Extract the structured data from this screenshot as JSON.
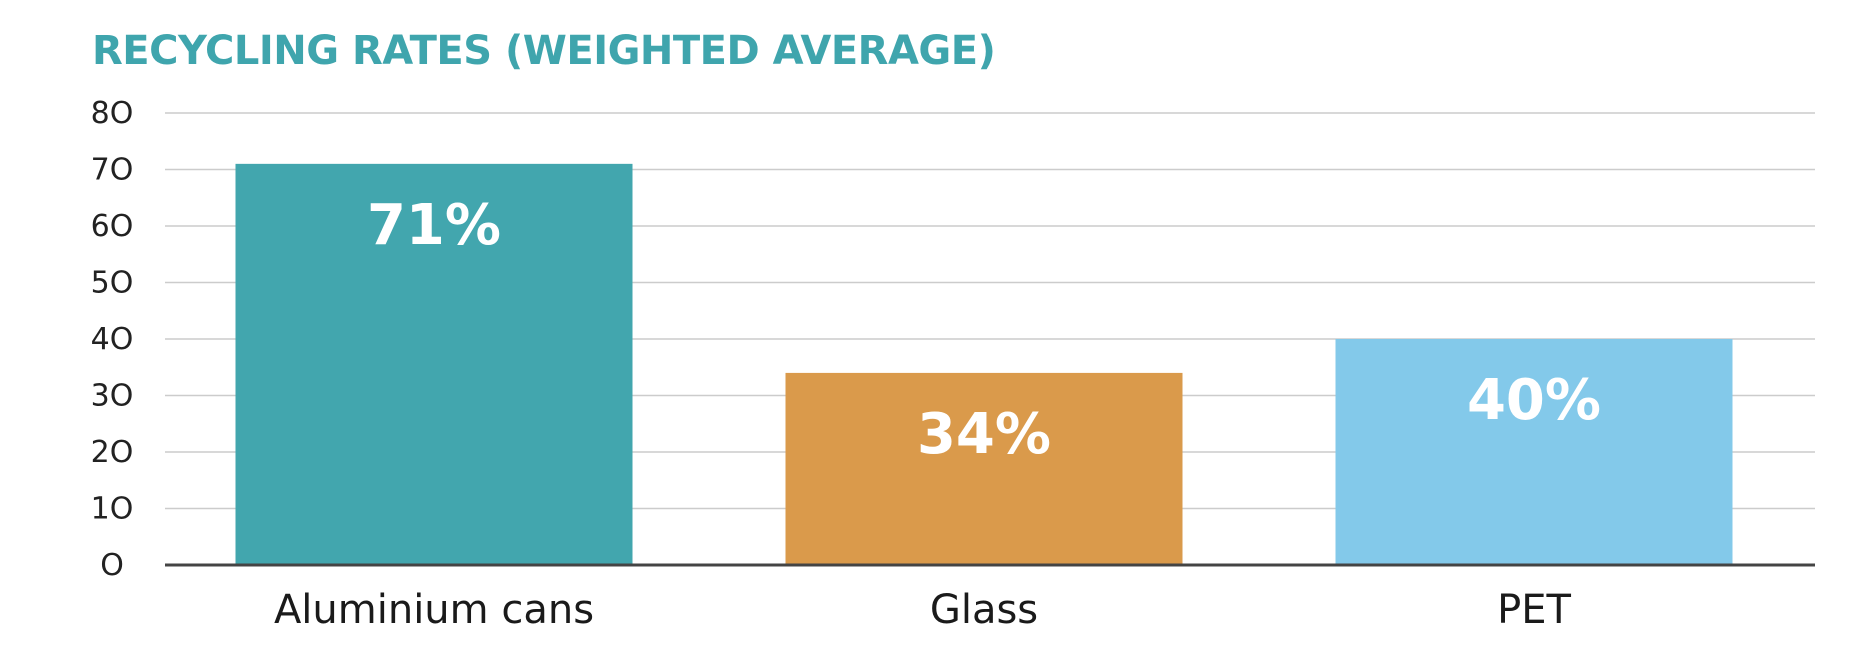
{
  "chart_data": {
    "type": "bar",
    "title": "RECYCLING RATES (WEIGHTED AVERAGE)",
    "xlabel": "",
    "ylabel": "",
    "categories": [
      "Aluminium cans",
      "Glass",
      "PET"
    ],
    "values": [
      71,
      34,
      40
    ],
    "data_labels": [
      "71%",
      "34%",
      "40%"
    ],
    "ylim": [
      0,
      80
    ],
    "yticks": [
      0,
      10,
      20,
      30,
      40,
      50,
      60,
      70,
      80
    ],
    "ytick_labels": [
      "O",
      "1O",
      "2O",
      "3O",
      "4O",
      "5O",
      "6O",
      "7O",
      "8O"
    ],
    "grid": true,
    "legend": "none",
    "colors": {
      "title": "#3fa5ad",
      "bars": [
        "#42a6ae",
        "#da9a4b",
        "#83c9ea"
      ],
      "grid": "#cccccc",
      "axis": "#444444"
    }
  }
}
